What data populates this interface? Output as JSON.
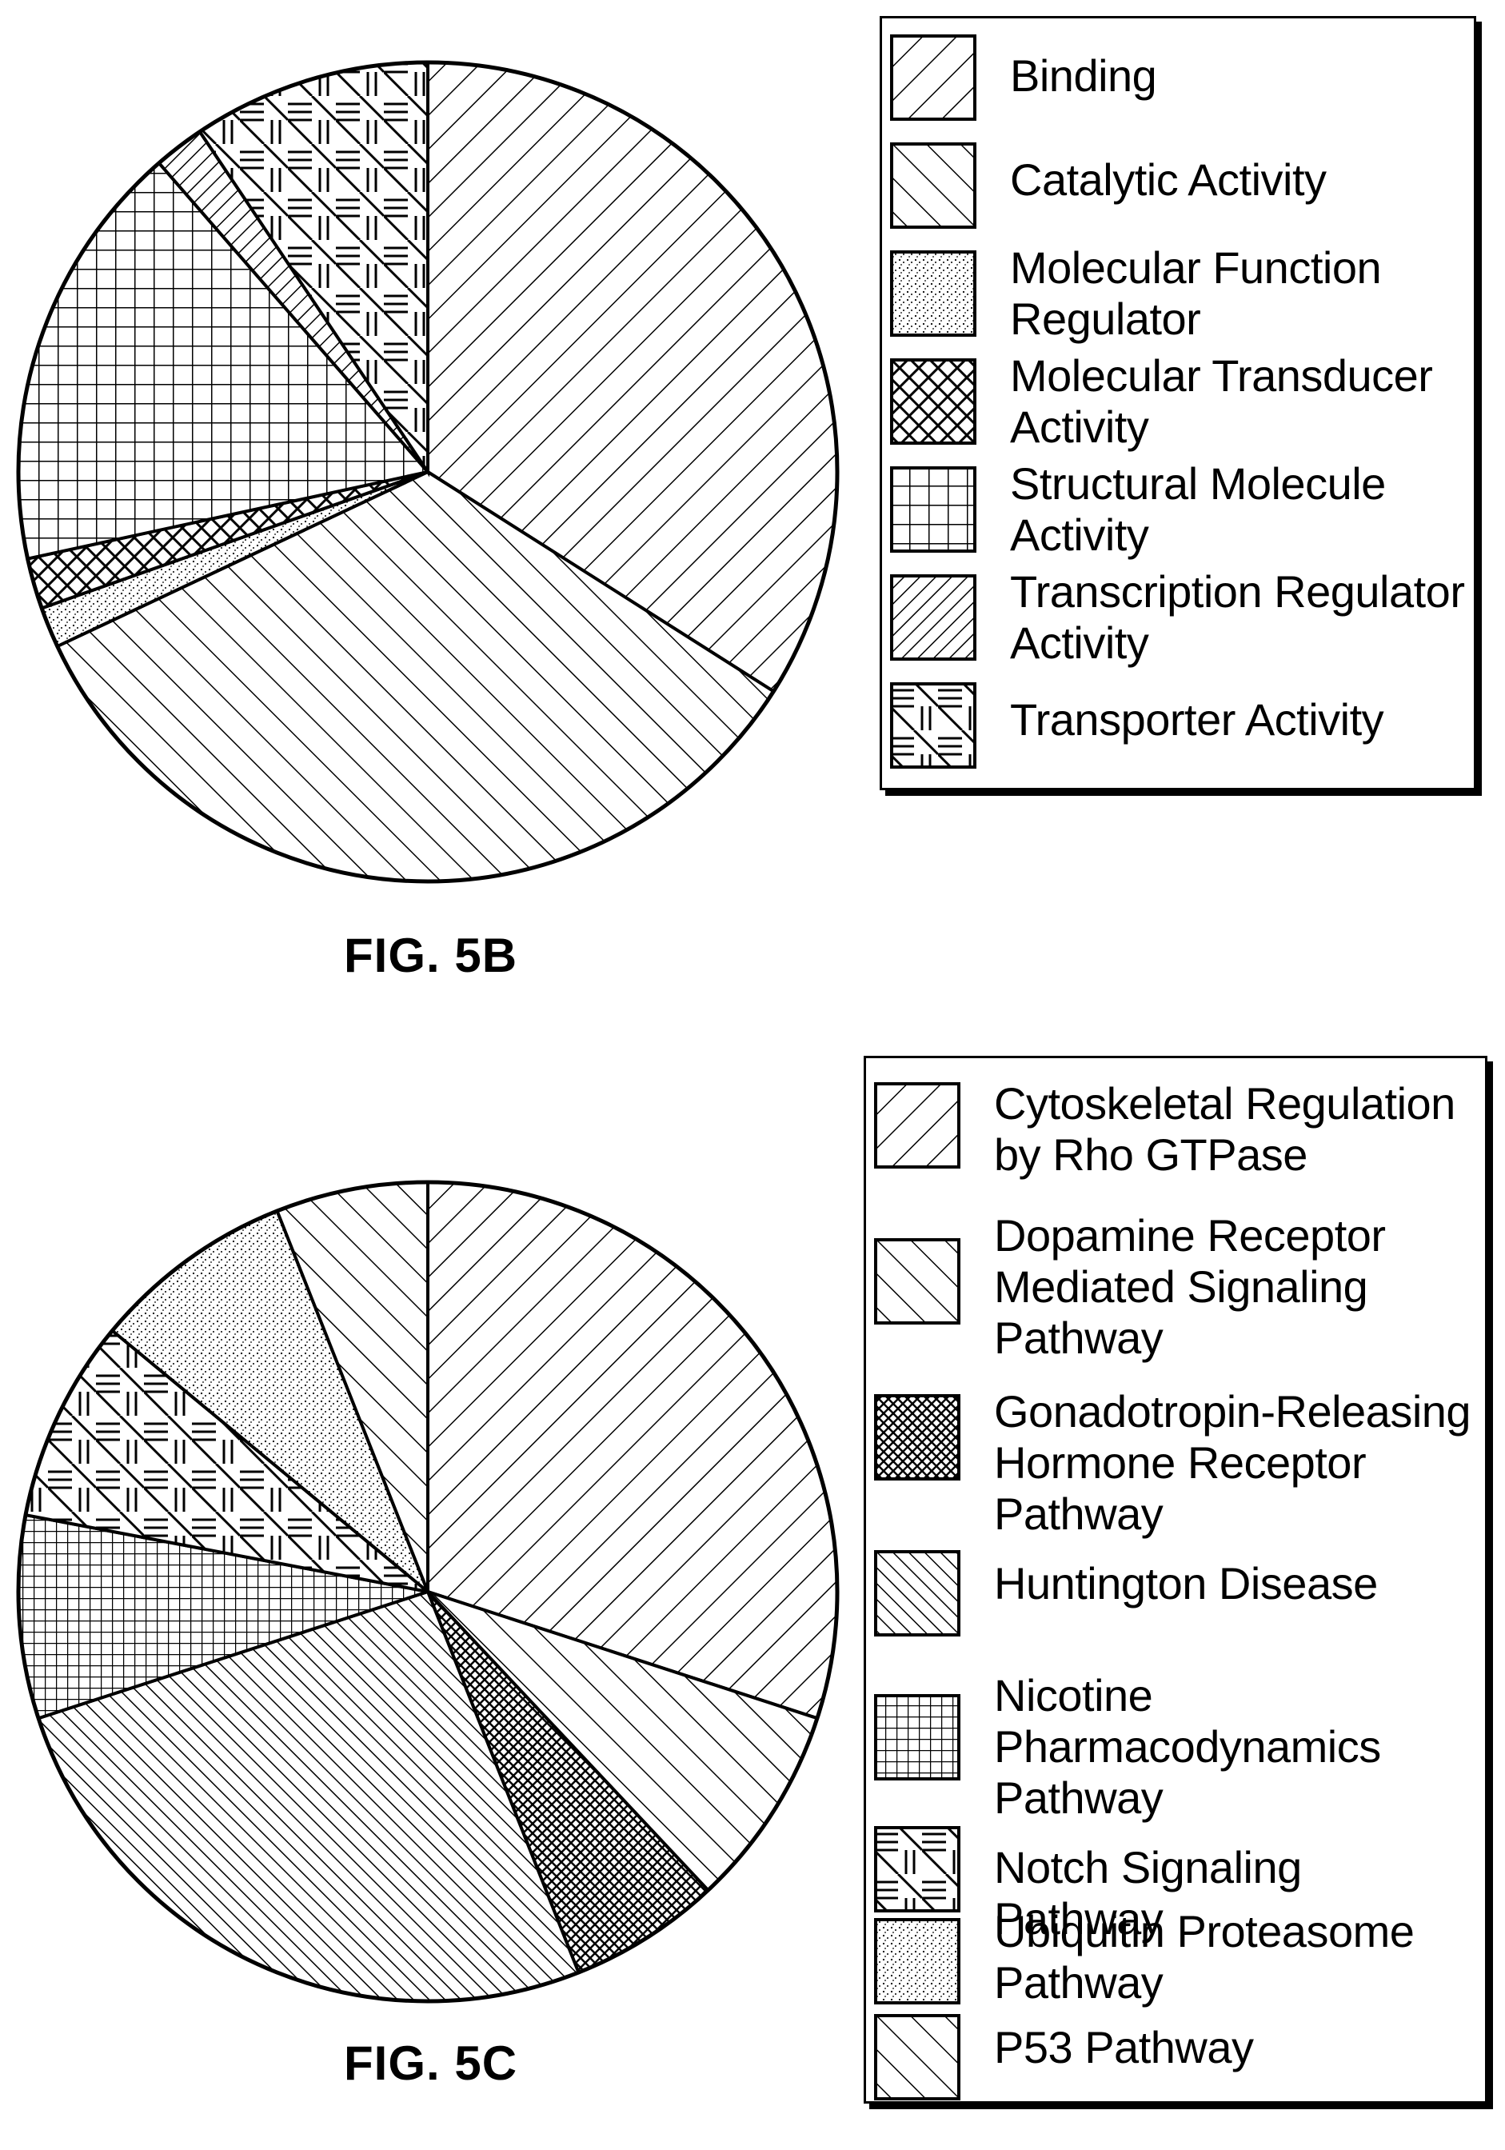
{
  "figures": [
    {
      "id": "5b",
      "caption": "FIG. 5B",
      "chart_data": {
        "type": "pie",
        "slices": [
          {
            "label": "Binding",
            "value": 34,
            "pattern": "diag-right"
          },
          {
            "label": "Catalytic Activity",
            "value": 34,
            "pattern": "diag-left"
          },
          {
            "label": "Molecular Function Regulator",
            "value": 1.6,
            "pattern": "stipple"
          },
          {
            "label": "Molecular Transducer Activity",
            "value": 2,
            "pattern": "crosshatch"
          },
          {
            "label": "Structural Molecule Activity",
            "value": 17,
            "pattern": "grid"
          },
          {
            "label": "Transcription Regulator Activity",
            "value": 2,
            "pattern": "diag-right-dense"
          },
          {
            "label": "Transporter Activity",
            "value": 9.4,
            "pattern": "weave"
          }
        ],
        "legend": "right"
      }
    },
    {
      "id": "5c",
      "caption": "FIG. 5C",
      "chart_data": {
        "type": "pie",
        "slices": [
          {
            "label": "Cytoskeletal Regulation by Rho GTPase",
            "value": 30,
            "pattern": "diag-right"
          },
          {
            "label": "Dopamine Receptor Mediated Signaling Pathway",
            "value": 8,
            "pattern": "diag-left"
          },
          {
            "label": "Gonadotropin-Releasing Hormone Receptor Pathway",
            "value": 6,
            "pattern": "crosshatch-dense"
          },
          {
            "label": "Huntington Disease",
            "value": 26,
            "pattern": "diag-left-dense"
          },
          {
            "label": "Nicotine Pharmacodynamics Pathway",
            "value": 8,
            "pattern": "grid-dense"
          },
          {
            "label": "Notch Signaling Pathway",
            "value": 8,
            "pattern": "weave"
          },
          {
            "label": "Ubiquitin Proteasome Pathway",
            "value": 8,
            "pattern": "stipple"
          },
          {
            "label": "P53 Pathway",
            "value": 6,
            "pattern": "diag-left"
          }
        ],
        "legend": "right"
      }
    }
  ]
}
